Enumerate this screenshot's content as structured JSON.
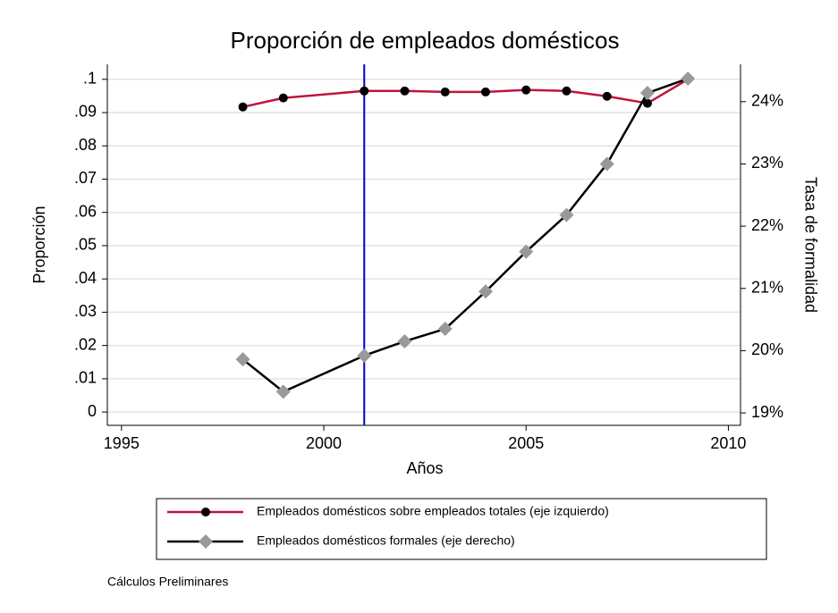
{
  "chart_data": {
    "type": "line",
    "title": "Proporción de empleados domésticos",
    "xlabel": "Años",
    "ylabel": "Proporción",
    "y2label": "Tasa de formalidad",
    "note": "Cálculos Preliminares",
    "x": [
      1998,
      1999,
      2001,
      2002,
      2003,
      2004,
      2005,
      2006,
      2007,
      2008,
      2009
    ],
    "series": [
      {
        "name": "Empleados domésticos sobre empleados totales (eje izquierdo)",
        "line_color": "#c0143c",
        "marker_color": "#000000",
        "marker": "circle",
        "axis": "y",
        "values": [
          0.0917,
          0.0944,
          0.0965,
          0.0965,
          0.0962,
          0.0962,
          0.0968,
          0.0965,
          0.0949,
          0.0928,
          0.1
        ]
      },
      {
        "name": "Empleados domésticos formales (eje derecho)",
        "line_color": "#000000",
        "marker_color": "#999999",
        "marker": "diamond",
        "axis": "y2",
        "values": [
          19.86,
          19.34,
          19.92,
          20.15,
          20.35,
          20.95,
          21.59,
          22.18,
          23.0,
          24.14,
          24.37
        ]
      }
    ],
    "xlim": [
      1994.65,
      2010.3
    ],
    "xticks": [
      1995,
      2000,
      2005,
      2010
    ],
    "ylim": [
      -0.004,
      0.1045
    ],
    "yticks": [
      0,
      {
        "value": 0.01,
        "label": ".01"
      },
      {
        "value": 0.02,
        "label": ".02"
      },
      {
        "value": 0.03,
        "label": ".03"
      },
      {
        "value": 0.04,
        "label": ".04"
      },
      {
        "value": 0.05,
        "label": ".05"
      },
      {
        "value": 0.06,
        "label": ".06"
      },
      {
        "value": 0.07,
        "label": ".07"
      },
      {
        "value": 0.08,
        "label": ".08"
      },
      {
        "value": 0.09,
        "label": ".09"
      },
      {
        "value": 0.1,
        "label": ".1"
      }
    ],
    "y2lim": [
      18.8,
      24.6
    ],
    "y2ticks": [
      {
        "value": 19,
        "label": "19%"
      },
      {
        "value": 20,
        "label": "20%"
      },
      {
        "value": 21,
        "label": "21%"
      },
      {
        "value": 22,
        "label": "22%"
      },
      {
        "value": 23,
        "label": "23%"
      },
      {
        "value": 24,
        "label": "24%"
      }
    ],
    "grid": true,
    "vline": {
      "x": 2001,
      "color": "#0000cc"
    }
  }
}
